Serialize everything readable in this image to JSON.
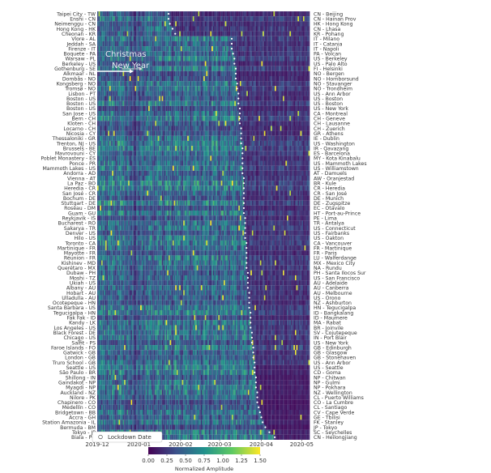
{
  "chart_data": {
    "type": "heatmap",
    "x_axis": {
      "type": "date",
      "start": "2019-12-01",
      "end": "2020-05-07",
      "resolution": "day",
      "tick_labels": [
        "2019-12",
        "2020-01",
        "2020-02",
        "2020-03",
        "2020-04",
        "2020-05"
      ]
    },
    "colorbar": {
      "label": "Normalized Amplitude",
      "range": [
        0,
        1.5
      ],
      "colormap": "viridis",
      "tick_labels": [
        "0.00",
        "0.25",
        "0.50",
        "0.75",
        "1.00",
        "1.25",
        "1.50"
      ]
    },
    "estimated_levels": {
      "before_lockdown": 0.55,
      "after_lockdown": 0.25,
      "weekend_factor": 0.7
    },
    "annotations": {
      "christmas": "Christmas",
      "new_year": "New Year"
    },
    "legend": {
      "label": "Lockdown Date",
      "placement": "bottom-left",
      "marker": "white circle"
    },
    "left_labels": [
      "Taipei City - TW",
      "Enshi - CN",
      "Neimenggu - CN",
      "Hong Kong - HK",
      "Cheonan - KR",
      "Vlore - AL",
      "Jeddah - SA",
      "Firenze - IT",
      "Boquete - PA",
      "Warsaw - PL",
      "Berkeley - US",
      "Gothenburg - SE",
      "Alkmaar - NL",
      "Dombås - NO",
      "Kongsberg - NO",
      "Tromsø - NO",
      "Lisbon - PT",
      "Boston - US",
      "Boston - US",
      "Boston - US",
      "San Jose - US",
      "Bern - CH",
      "Kloten - CH",
      "Locarno - CH",
      "Nicosia - CY",
      "Thessaloniki - GR",
      "Trenton, NJ - US",
      "Brussels - BE",
      "Mavrovouni - CY",
      "Poblet Monastery - ES",
      "Ponce - PR",
      "Mammoth Lakes - US",
      "Andorra - AD",
      "Vienna - AT",
      "La Paz - BO",
      "Heredia - CR",
      "San José - CR",
      "Bochum - DE",
      "Stuttgart - DE",
      "Roseau - DM",
      "Guam - GU",
      "Reykjavik - IS",
      "Bucharest - RO",
      "Sakarya - TR",
      "Denver - US",
      "Hilo - US",
      "Toronto - CA",
      "Martinique - FR",
      "Mayotte - FR",
      "Réunion - FR",
      "Kishinev - MD",
      "Querétaro - MX",
      "Dubaw - PH",
      "Moshi - TZ",
      "Ukiah - US",
      "Albany - AU",
      "Hobart - AU",
      "Ulladulla - AU",
      "Ocotepeque - HN",
      "Santa Barbara - US",
      "Tegucigalpa - HN",
      "Fak Fak - ID",
      "Kandy - LK",
      "Los Angeles - US",
      "Black Forest - DE",
      "Chicago - US",
      "Salfit - PS",
      "Faroe Islands - FO",
      "Gatwick - GB",
      "London - GB",
      "Truro School - GB",
      "Seattle - US",
      "São Paulo - BR",
      "Shillong - IN",
      "Gaindakot - NP",
      "Myagdi - NP",
      "Auckland - NZ",
      "Nilore - PK",
      "Chapinero - CO",
      "Medellín - CO",
      "Bridgetown - BB",
      "Accra - GH",
      "Station Amazonia - IL",
      "Bermuda - BM",
      "Tokyo - JP",
      "Biala - PG"
    ],
    "right_labels": [
      "CN - Beijing",
      "CN - Hainan Prov",
      "HK - Hong Kong",
      "CN - Lhasa",
      "KR - Pohang",
      "IT - Milano",
      "IT - Catania",
      "IT - Napoli",
      "PA - Volcan",
      "US - Berkeley",
      "US - Palo Alto",
      "FI - Helsinki",
      "NO - Bergen",
      "NO - Hornborsund",
      "NO - Stavanger",
      "NO - Trondheim",
      "US - Ann Arbor",
      "US - Boston",
      "US - Boston",
      "US - New York",
      "CA - Montreal",
      "CH - Geneve",
      "CH - Lausanne",
      "CH - Zuerich",
      "GR - Athens",
      "IE - Dublin",
      "US - Washington",
      "IR - Qavazang",
      "ES - Barcelona",
      "MY - Kota Kinabalu",
      "US - Mammoth Lakes",
      "US - Williamstown",
      "AT - Damuels",
      "AW - Oranjestad",
      "BR - Kule",
      "CR - Heredia",
      "CR - San José",
      "DE - Munich",
      "DE - Zugspitze",
      "EC - Otavalo",
      "HT - Port-au-Prince",
      "PE - Lima",
      "TR - Antalya",
      "US - Connecticut",
      "US - Fairbanks",
      "US - Oakton",
      "CA - Vancouver",
      "FR - Martinique",
      "FR - Paris",
      "LU - Walferdange",
      "MX - Mexico City",
      "NA - Rundu",
      "PH - Santa Ilocos Sur",
      "US - San Francisco",
      "AU - Adelaide",
      "AU - Canberra",
      "AU - Melbourne",
      "US - Orono",
      "NZ - Ashburton",
      "HN - Tegucigalpa",
      "ID - Bangkalang",
      "ID - Maumere",
      "MA - Rabat",
      "BR - Joinvile",
      "SV - Cojutepeque",
      "IN - Port Blair",
      "US - New York",
      "GB - Edinburgh",
      "GB - Glasgow",
      "GB - Stonehaven",
      "US - Ann Arbor",
      "US - Seattle",
      "CD - Goma",
      "NP - Chitwan",
      "NP - Gulmi",
      "NP - Pokhara",
      "NZ - Wellington",
      "CL - Puerto Williams",
      "CO - La Cumbre",
      "CL - Santiago",
      "CV - Cape Verde",
      "GE - Tbilisi",
      "FK - Stanley",
      "JP - Tokyo",
      "SC - Seychelles",
      "CN - Heilongjiang"
    ],
    "lockdown_dates": [
      "2020-01-23",
      "2020-01-23",
      "2020-01-24",
      "2020-01-26",
      "2020-01-28",
      "2020-03-10",
      "2020-03-10",
      "2020-03-10",
      "2020-03-11",
      "2020-03-12",
      "2020-03-12",
      "2020-03-13",
      "2020-03-13",
      "2020-03-13",
      "2020-03-14",
      "2020-03-14",
      "2020-03-15",
      "2020-03-15",
      "2020-03-15",
      "2020-03-16",
      "2020-03-16",
      "2020-03-16",
      "2020-03-16",
      "2020-03-17",
      "2020-03-17",
      "2020-03-17",
      "2020-03-17",
      "2020-03-18",
      "2020-03-18",
      "2020-03-18",
      "2020-03-18",
      "2020-03-18",
      "2020-03-18",
      "2020-03-19",
      "2020-03-19",
      "2020-03-19",
      "2020-03-19",
      "2020-03-19",
      "2020-03-19",
      "2020-03-19",
      "2020-03-19",
      "2020-03-20",
      "2020-03-20",
      "2020-03-20",
      "2020-03-20",
      "2020-03-20",
      "2020-03-21",
      "2020-03-21",
      "2020-03-21",
      "2020-03-21",
      "2020-03-21",
      "2020-03-21",
      "2020-03-22",
      "2020-03-22",
      "2020-03-22",
      "2020-03-22",
      "2020-03-23",
      "2020-03-23",
      "2020-03-23",
      "2020-03-23",
      "2020-03-24",
      "2020-03-24",
      "2020-03-24",
      "2020-03-24",
      "2020-03-25",
      "2020-03-25",
      "2020-03-25",
      "2020-03-26",
      "2020-03-26",
      "2020-03-26",
      "2020-03-27",
      "2020-03-27",
      "2020-03-27",
      "2020-03-28",
      "2020-03-28",
      "2020-03-28",
      "2020-03-29",
      "2020-03-29",
      "2020-03-29",
      "2020-03-30",
      "2020-03-31",
      "2020-04-01",
      "2020-04-02",
      "2020-04-04",
      "2020-04-07",
      "2020-04-11"
    ]
  }
}
